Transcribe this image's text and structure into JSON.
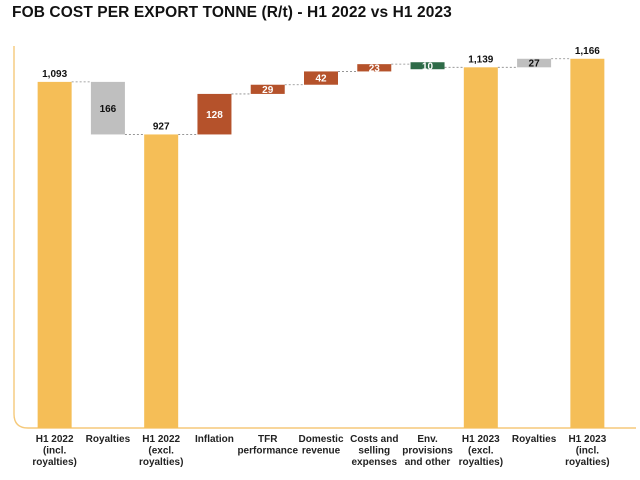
{
  "chart_data": {
    "type": "waterfall",
    "title": "FOB COST PER EXPORT TONNE (R/t) - H1 2022 vs H1 2023",
    "ylim": [
      0,
      1200
    ],
    "colors": {
      "total": "#F5BE57",
      "royalties": "#BFBFBF",
      "increase": "#B5522B",
      "decrease": "#2E6B48",
      "axis": "#F5C97A",
      "connector": "#888888"
    },
    "steps": [
      {
        "category": [
          "H1 2022",
          "(incl.",
          "royalties)"
        ],
        "kind": "total",
        "value": 1093,
        "label": "1,093"
      },
      {
        "category": [
          "Royalties"
        ],
        "kind": "royalties",
        "value": -166,
        "label": "166"
      },
      {
        "category": [
          "H1 2022",
          "(excl.",
          "royalties)"
        ],
        "kind": "total",
        "value": 927,
        "label": "927"
      },
      {
        "category": [
          "Inflation"
        ],
        "kind": "increase",
        "value": 128,
        "label": "128"
      },
      {
        "category": [
          "TFR",
          "performance"
        ],
        "kind": "increase",
        "value": 29,
        "label": "29"
      },
      {
        "category": [
          "Domestic",
          "revenue"
        ],
        "kind": "increase",
        "value": 42,
        "label": "42"
      },
      {
        "category": [
          "Costs and",
          "selling",
          "expenses"
        ],
        "kind": "increase",
        "value": 23,
        "label": "23"
      },
      {
        "category": [
          "Env.",
          "provisions",
          "and other"
        ],
        "kind": "decrease",
        "value": -10,
        "label": "10"
      },
      {
        "category": [
          "H1 2023",
          "(excl.",
          "royalties)"
        ],
        "kind": "total",
        "value": 1139,
        "label": "1,139"
      },
      {
        "category": [
          "Royalties"
        ],
        "kind": "royalties",
        "value": 27,
        "label": "27"
      },
      {
        "category": [
          "H1 2023",
          "(incl.",
          "royalties)"
        ],
        "kind": "total",
        "value": 1166,
        "label": "1,166"
      }
    ]
  }
}
